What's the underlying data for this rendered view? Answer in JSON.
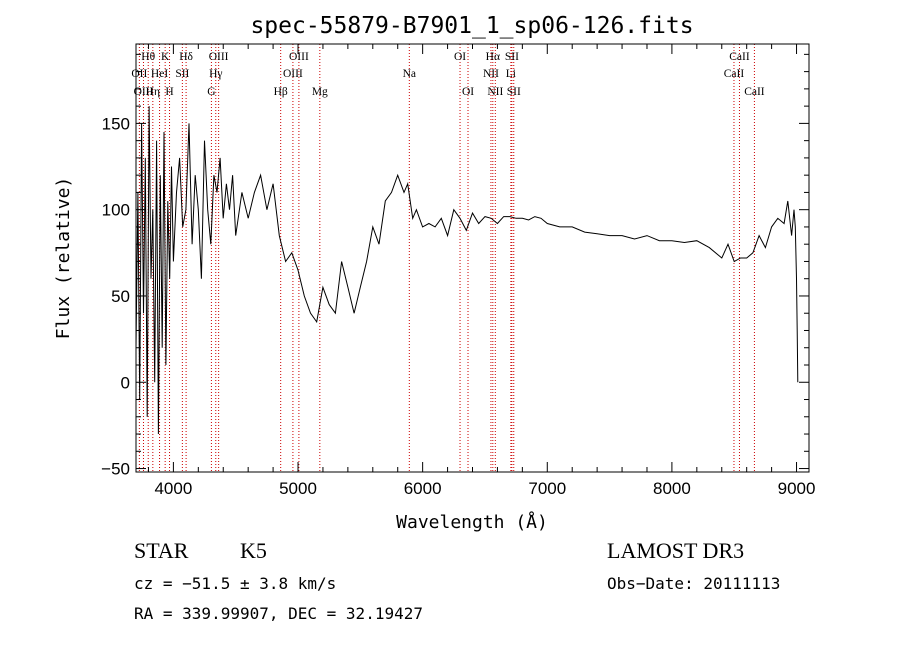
{
  "chart_data": {
    "type": "line",
    "title": "spec-55879-B7901_1_sp06-126.fits",
    "xlabel": "Wavelength (Å)",
    "ylabel": "Flux (relative)",
    "xlim": [
      3700,
      9100
    ],
    "ylim": [
      -52,
      196
    ],
    "xticks": [
      4000,
      5000,
      6000,
      7000,
      8000,
      9000
    ],
    "yticks": [
      -50,
      0,
      50,
      100,
      150
    ],
    "series": [
      {
        "name": "flux",
        "x": [
          3700,
          3715,
          3730,
          3745,
          3760,
          3775,
          3790,
          3805,
          3820,
          3835,
          3850,
          3865,
          3880,
          3895,
          3910,
          3925,
          3940,
          3955,
          3970,
          3985,
          4000,
          4025,
          4050,
          4075,
          4100,
          4125,
          4150,
          4175,
          4200,
          4225,
          4250,
          4275,
          4300,
          4325,
          4350,
          4375,
          4400,
          4425,
          4450,
          4475,
          4500,
          4550,
          4600,
          4650,
          4700,
          4750,
          4800,
          4850,
          4900,
          4950,
          5000,
          5050,
          5100,
          5150,
          5200,
          5250,
          5300,
          5350,
          5400,
          5450,
          5500,
          5550,
          5600,
          5650,
          5700,
          5750,
          5800,
          5850,
          5880,
          5920,
          5950,
          6000,
          6050,
          6100,
          6150,
          6200,
          6250,
          6300,
          6350,
          6400,
          6450,
          6500,
          6550,
          6600,
          6650,
          6700,
          6750,
          6800,
          6850,
          6900,
          6950,
          7000,
          7100,
          7200,
          7300,
          7400,
          7500,
          7600,
          7700,
          7800,
          7900,
          8000,
          8100,
          8200,
          8300,
          8400,
          8450,
          8500,
          8550,
          8600,
          8650,
          8700,
          8750,
          8800,
          8850,
          8900,
          8930,
          8960,
          8980,
          8990,
          9000,
          9005,
          9010
        ],
        "y": [
          20,
          110,
          -10,
          150,
          40,
          130,
          -20,
          160,
          60,
          100,
          0,
          140,
          -30,
          120,
          20,
          145,
          10,
          105,
          60,
          125,
          70,
          110,
          130,
          90,
          100,
          150,
          80,
          120,
          100,
          60,
          140,
          100,
          80,
          120,
          110,
          130,
          95,
          115,
          100,
          120,
          85,
          110,
          95,
          110,
          120,
          100,
          115,
          85,
          70,
          75,
          65,
          50,
          40,
          35,
          55,
          45,
          40,
          70,
          55,
          40,
          55,
          70,
          90,
          80,
          105,
          110,
          120,
          110,
          115,
          95,
          100,
          90,
          92,
          90,
          95,
          85,
          100,
          95,
          88,
          98,
          92,
          96,
          95,
          92,
          96,
          96,
          95,
          95,
          94,
          96,
          95,
          92,
          90,
          90,
          87,
          86,
          85,
          85,
          83,
          85,
          82,
          82,
          81,
          82,
          78,
          72,
          80,
          70,
          72,
          72,
          75,
          85,
          78,
          90,
          95,
          92,
          105,
          85,
          100,
          90,
          60,
          30,
          0
        ]
      }
    ],
    "lines": [
      {
        "name": "Hθ",
        "x": 3798,
        "row": 0
      },
      {
        "name": "OII",
        "x": 3727,
        "row": 1
      },
      {
        "name": "OIII",
        "x": 3760,
        "row": 2
      },
      {
        "name": "K",
        "x": 3934,
        "row": 0
      },
      {
        "name": "HeI",
        "x": 3889,
        "row": 1
      },
      {
        "name": "Hη",
        "x": 3835,
        "row": 2
      },
      {
        "name": "Hδ",
        "x": 4102,
        "row": 0
      },
      {
        "name": "SII",
        "x": 4072,
        "row": 1
      },
      {
        "name": "H",
        "x": 3969,
        "row": 2
      },
      {
        "name": "OIII",
        "x": 4363,
        "row": 0
      },
      {
        "name": "Hγ",
        "x": 4340,
        "row": 1
      },
      {
        "name": "G",
        "x": 4305,
        "row": 2
      },
      {
        "name": "OIII",
        "x": 5007,
        "row": 0
      },
      {
        "name": "OIII",
        "x": 4959,
        "row": 1
      },
      {
        "name": "Hβ",
        "x": 4861,
        "row": 2
      },
      {
        "name": "Mg",
        "x": 5175,
        "row": 2
      },
      {
        "name": "Na",
        "x": 5893,
        "row": 1
      },
      {
        "name": "OI",
        "x": 6300,
        "row": 0
      },
      {
        "name": "OI",
        "x": 6364,
        "row": 2
      },
      {
        "name": "Hα",
        "x": 6563,
        "row": 0
      },
      {
        "name": "NII",
        "x": 6548,
        "row": 1
      },
      {
        "name": "NII",
        "x": 6583,
        "row": 2
      },
      {
        "name": "SII",
        "x": 6716,
        "row": 0
      },
      {
        "name": "Li",
        "x": 6708,
        "row": 1
      },
      {
        "name": "SII",
        "x": 6731,
        "row": 2
      },
      {
        "name": "CaII",
        "x": 8542,
        "row": 0
      },
      {
        "name": "CaII",
        "x": 8498,
        "row": 1
      },
      {
        "name": "CaII",
        "x": 8662,
        "row": 2
      }
    ]
  },
  "info": {
    "class": "STAR",
    "subclass": "K5",
    "survey": "LAMOST DR3",
    "cz": "cz = −51.5 ± 3.8 km/s",
    "obs_date": "Obs−Date: 20111113",
    "coords": "RA = 339.99907, DEC =  32.19427"
  },
  "colors": {
    "line_markers": "#cc0000",
    "spectrum": "#000000"
  }
}
